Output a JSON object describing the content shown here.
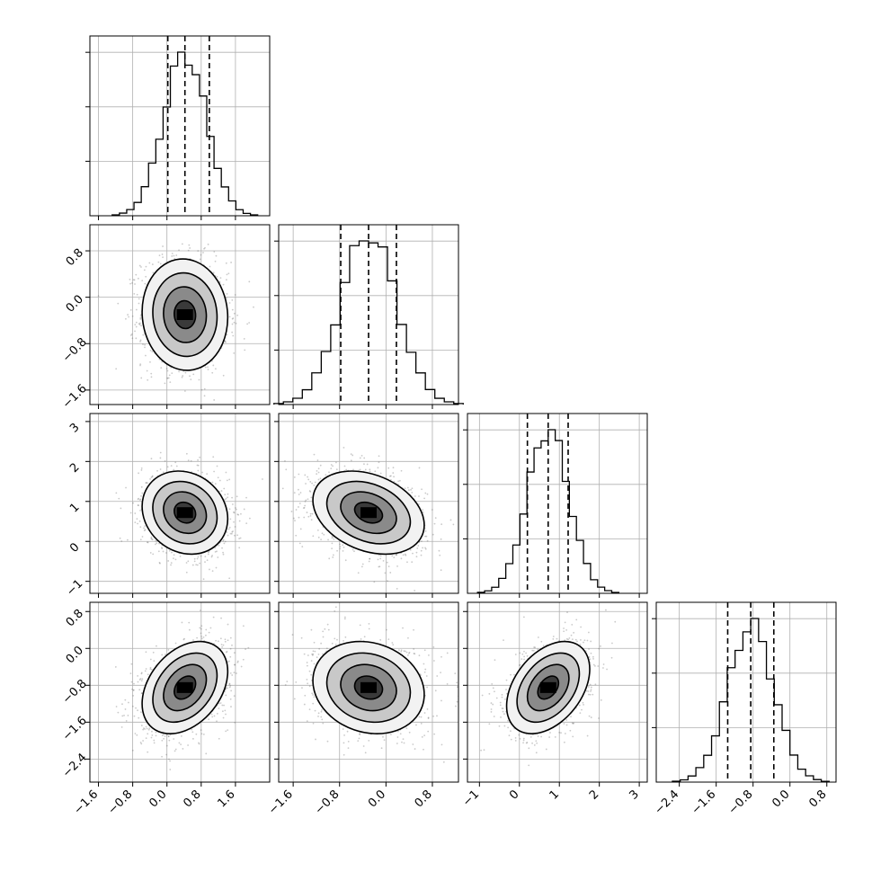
{
  "chart_data": {
    "type": "corner",
    "title": "",
    "parameters": [
      {
        "index": 0,
        "median": 0.42,
        "q16": 0.02,
        "q84": 0.99,
        "sigma": 0.5,
        "range": [
          -1.8,
          2.4
        ],
        "ticks": [
          -1.6,
          -0.8,
          0.0,
          0.8,
          1.6
        ],
        "tick_labels": [
          "−1.6",
          "−0.8",
          "0.0",
          "0.8",
          "1.6"
        ]
      },
      {
        "index": 1,
        "median": -0.3,
        "q16": -0.78,
        "q84": 0.18,
        "sigma": 0.48,
        "range": [
          -1.85,
          1.25
        ],
        "ticks": [
          -1.6,
          -0.8,
          0.0,
          0.8
        ],
        "tick_labels": [
          "−1.6",
          "−0.8",
          "0.0",
          "0.8"
        ]
      },
      {
        "index": 2,
        "median": 0.72,
        "q16": 0.2,
        "q84": 1.22,
        "sigma": 0.52,
        "range": [
          -1.3,
          3.2
        ],
        "ticks": [
          -1,
          0,
          1,
          2,
          3
        ],
        "tick_labels": [
          "−1",
          "0",
          "1",
          "2",
          "3"
        ]
      },
      {
        "index": 3,
        "median": -0.85,
        "q16": -1.35,
        "q84": -0.35,
        "sigma": 0.5,
        "range": [
          -2.9,
          1.0
        ],
        "ticks": [
          -2.4,
          -1.6,
          -0.8,
          0.0,
          0.8
        ],
        "tick_labels": [
          "−2.4",
          "−1.6",
          "−0.8",
          "0.0",
          "0.8"
        ]
      }
    ],
    "correlations": [
      {
        "x": 0,
        "y": 1,
        "rho": -0.05
      },
      {
        "x": 0,
        "y": 2,
        "rho": -0.15
      },
      {
        "x": 1,
        "y": 2,
        "rho": -0.3
      },
      {
        "x": 0,
        "y": 3,
        "rho": 0.35
      },
      {
        "x": 1,
        "y": 3,
        "rho": -0.15
      },
      {
        "x": 2,
        "y": 3,
        "rho": 0.4
      }
    ],
    "histogram_bins": 20,
    "contour_levels_sigma": [
      0.5,
      1.0,
      1.5,
      2.0
    ],
    "grid": true,
    "quantile_lines": "dashed"
  }
}
